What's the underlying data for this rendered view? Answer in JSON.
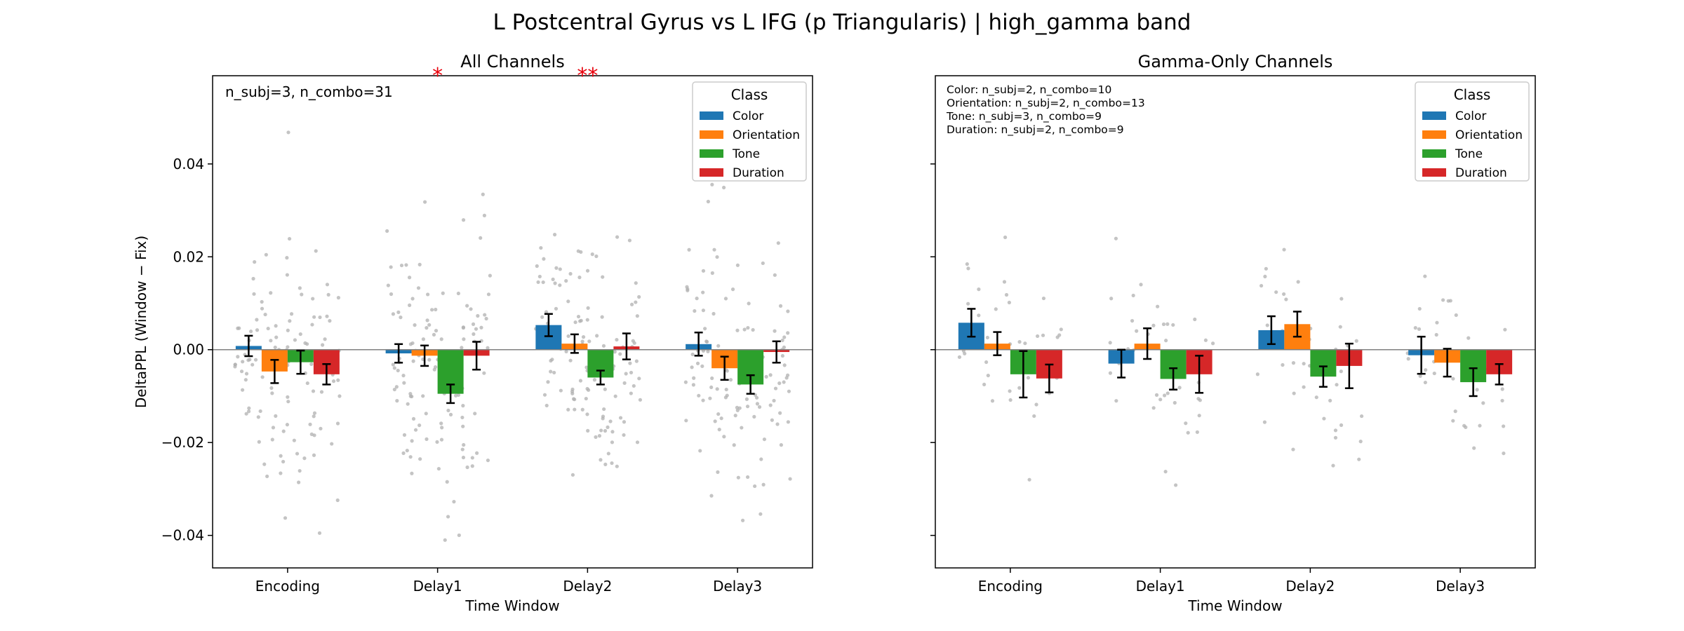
{
  "figure": {
    "suptitle": "L Postcentral Gyrus vs L IFG (p Triangularis)  |  high_gamma band"
  },
  "colors": {
    "Color": "#1f77b4",
    "Orientation": "#ff7f0e",
    "Tone": "#2ca02c",
    "Duration": "#d62728",
    "points": "#b0b0b0",
    "significance": "#e8000b"
  },
  "chart_data": [
    {
      "type": "bar",
      "title": "All Channels",
      "xlabel": "Time Window",
      "ylabel": "DeltaPPL (Window − Fix)",
      "categories": [
        "Encoding",
        "Delay1",
        "Delay2",
        "Delay3"
      ],
      "ylim": [
        -0.047,
        0.059
      ],
      "yticks": [
        -0.04,
        -0.02,
        0.0,
        0.02,
        0.04
      ],
      "ytick_labels": [
        "−0.04",
        "−0.02",
        "0.00",
        "0.02",
        "0.04"
      ],
      "show_ytick_labels": true,
      "zero_line": true,
      "grid": false,
      "legend": {
        "title": "Class",
        "placement": "top-right",
        "entries": [
          "Color",
          "Orientation",
          "Tone",
          "Duration"
        ]
      },
      "annotation": [
        "n_subj=3, n_combo=31"
      ],
      "significance_markers": [
        {
          "text": "*",
          "category": "Delay1"
        },
        {
          "text": "**",
          "category": "Delay2"
        }
      ],
      "series": [
        {
          "name": "Color",
          "values": [
            0.0008,
            -0.0008,
            0.0053,
            0.0012
          ],
          "errors": [
            0.0022,
            0.002,
            0.0024,
            0.0025
          ]
        },
        {
          "name": "Orientation",
          "values": [
            -0.0047,
            -0.0013,
            0.0013,
            -0.004
          ],
          "errors": [
            0.0025,
            0.0022,
            0.002,
            0.0025
          ]
        },
        {
          "name": "Tone",
          "values": [
            -0.0027,
            -0.0095,
            -0.006,
            -0.0075
          ],
          "errors": [
            0.0025,
            0.002,
            0.0015,
            0.002
          ]
        },
        {
          "name": "Duration",
          "values": [
            -0.0053,
            -0.0013,
            0.0007,
            -0.0005
          ],
          "errors": [
            0.0022,
            0.003,
            0.0028,
            0.0023
          ]
        }
      ],
      "points_per_bar": 31
    },
    {
      "type": "bar",
      "title": "Gamma-Only Channels",
      "xlabel": "Time Window",
      "ylabel": "",
      "categories": [
        "Encoding",
        "Delay1",
        "Delay2",
        "Delay3"
      ],
      "ylim": [
        -0.047,
        0.059
      ],
      "yticks": [
        -0.04,
        -0.02,
        0.0,
        0.02,
        0.04
      ],
      "ytick_labels": [
        "",
        "",
        "",
        "",
        ""
      ],
      "show_ytick_labels": false,
      "zero_line": true,
      "grid": false,
      "legend": {
        "title": "Class",
        "placement": "top-right",
        "entries": [
          "Color",
          "Orientation",
          "Tone",
          "Duration"
        ]
      },
      "annotation": [
        "Color: n_subj=2, n_combo=10",
        "Orientation: n_subj=2, n_combo=13",
        "Tone: n_subj=3, n_combo=9",
        "Duration: n_subj=2, n_combo=9"
      ],
      "significance_markers": [],
      "series": [
        {
          "name": "Color",
          "values": [
            0.0058,
            -0.003,
            0.0042,
            -0.0012
          ],
          "errors": [
            0.003,
            0.003,
            0.003,
            0.004
          ]
        },
        {
          "name": "Orientation",
          "values": [
            0.0013,
            0.0013,
            0.0055,
            -0.0028
          ],
          "errors": [
            0.0025,
            0.0033,
            0.0027,
            0.003
          ]
        },
        {
          "name": "Tone",
          "values": [
            -0.0053,
            -0.0063,
            -0.0058,
            -0.007
          ],
          "errors": [
            0.005,
            0.0023,
            0.0022,
            0.003
          ]
        },
        {
          "name": "Duration",
          "values": [
            -0.0062,
            -0.0053,
            -0.0035,
            -0.0053
          ],
          "errors": [
            0.003,
            0.004,
            0.0048,
            0.0022
          ]
        }
      ],
      "points_per_bar": 10
    }
  ]
}
